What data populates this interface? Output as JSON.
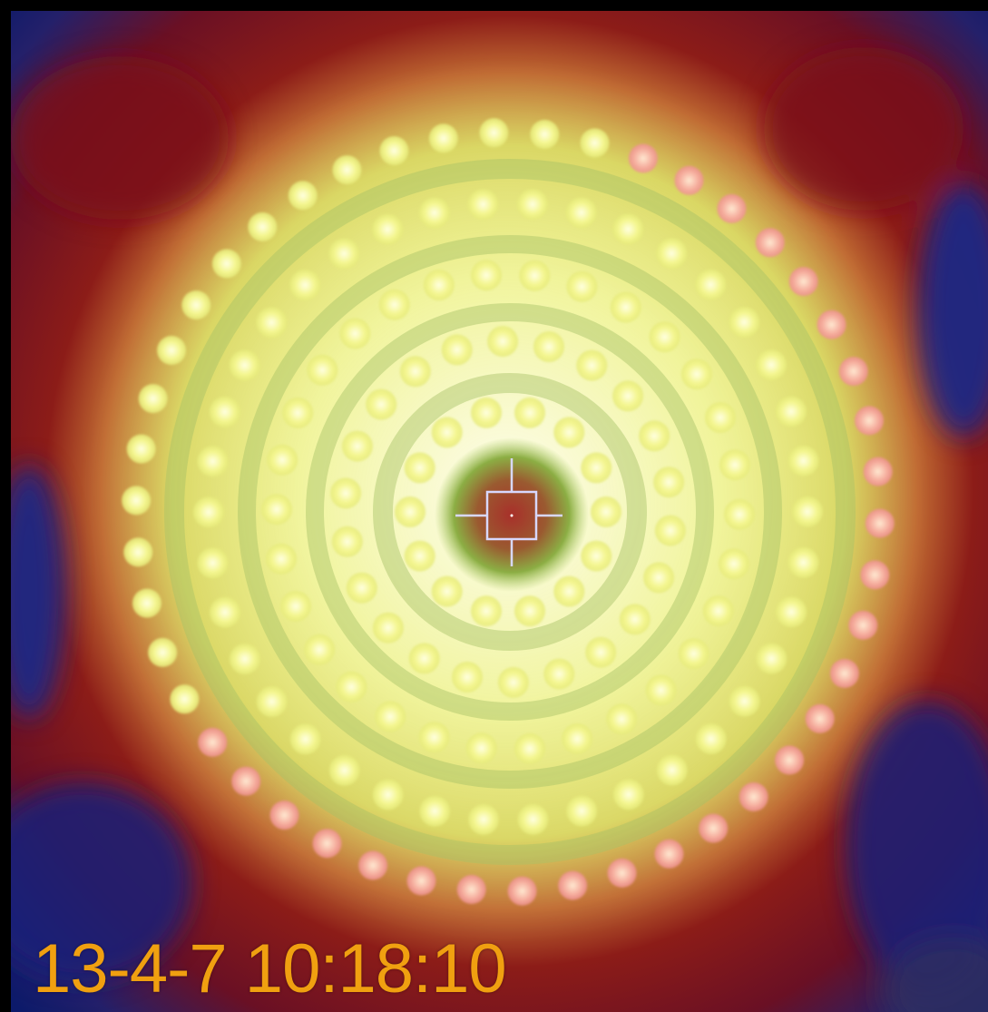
{
  "overlay": {
    "timestamp": "13-4-7 10:18:10",
    "timestamp_color": "#f0a010"
  },
  "palette": {
    "background_blue": "#14206e",
    "background_red": "#8a1616",
    "glow_yellow": "#f2f59a",
    "ring_green": "#9fbf60",
    "dot_core": "#fbff9c",
    "dot_outer": "#f7a0a0",
    "center_red": "#a0302a",
    "reticle": "#d8d8ff"
  },
  "icons": {
    "reticle": "crosshair-reticle-icon"
  }
}
